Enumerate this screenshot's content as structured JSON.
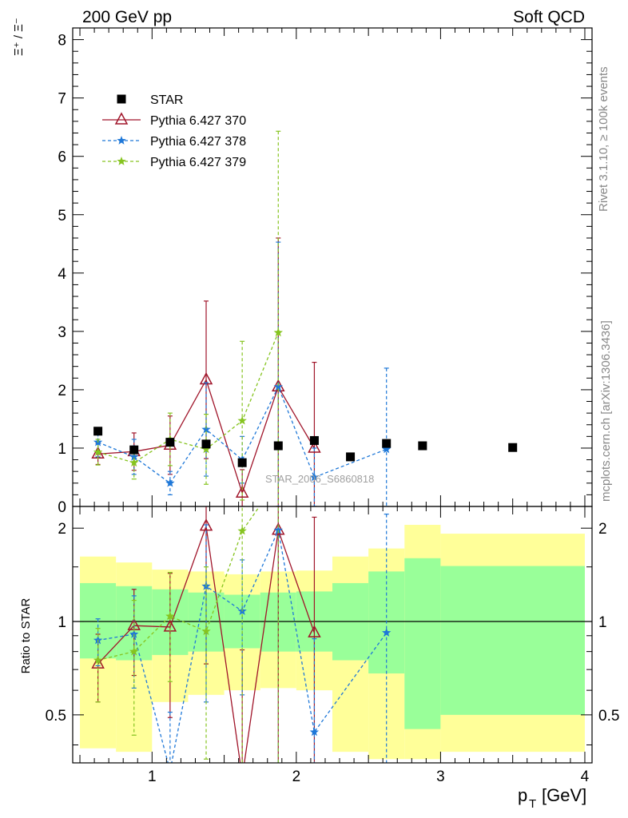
{
  "header": {
    "left": "200 GeV pp",
    "right": "Soft QCD"
  },
  "side": {
    "rivet": "Rivet 3.1.10, ≥ 100k events",
    "mcplots": "mcplots.cern.ch [arXiv:1306.3436]"
  },
  "watermark": "STAR_2006_S6860818",
  "colors": {
    "star": "#000000",
    "p370": "#a0152a",
    "p378": "#1f78d8",
    "p379": "#86c420",
    "band_inner": "#99ff99",
    "band_outer": "#ffff99"
  },
  "chart_data": [
    {
      "type": "scatter",
      "ylabel": "Ξ⁺ / Ξ⁻",
      "xlim": [
        0.45,
        4.05
      ],
      "ylim": [
        0,
        8.2
      ],
      "yticks": [
        "0",
        "1",
        "2",
        "3",
        "4",
        "5",
        "6",
        "7",
        "8"
      ],
      "legend": {
        "placement": "top-left",
        "entries": [
          "STAR",
          "Pythia 6.427 370",
          "Pythia 6.427 378",
          "Pythia 6.427 379"
        ]
      },
      "series": [
        {
          "name": "STAR",
          "marker": "square",
          "x": [
            0.625,
            0.875,
            1.125,
            1.375,
            1.625,
            1.875,
            2.125,
            2.375,
            2.625,
            2.875,
            3.5
          ],
          "y": [
            1.29,
            0.97,
            1.1,
            1.07,
            0.75,
            1.04,
            1.13,
            0.85,
            1.08,
            1.04,
            1.01
          ]
        },
        {
          "name": "Pythia 6.427 370",
          "marker": "triangle-open",
          "line": "solid",
          "x": [
            0.625,
            0.875,
            1.125,
            1.375,
            1.625,
            1.875,
            2.125
          ],
          "y": [
            0.9,
            0.94,
            1.05,
            2.17,
            0.23,
            2.05,
            1.0
          ],
          "yerr": [
            0.18,
            0.32,
            0.5,
            1.35,
            0.4,
            2.55,
            1.47
          ]
        },
        {
          "name": "Pythia 6.427 378",
          "marker": "star",
          "line": "dashed",
          "x": [
            0.625,
            0.875,
            1.125,
            1.375,
            1.625,
            1.875,
            2.125,
            2.625
          ],
          "y": [
            1.1,
            0.85,
            0.4,
            1.32,
            0.8,
            2.05,
            0.5,
            0.98
          ],
          "yerr": [
            0.25,
            0.3,
            0.2,
            0.8,
            0.4,
            2.48,
            0.5,
            1.39
          ]
        },
        {
          "name": "Pythia 6.427 379",
          "marker": "star",
          "line": "dashed",
          "x": [
            0.625,
            0.875,
            1.125,
            1.375,
            1.625,
            1.875
          ],
          "y": [
            0.93,
            0.75,
            1.15,
            0.98,
            1.47,
            2.98
          ],
          "yerr": [
            0.22,
            0.28,
            0.45,
            0.6,
            1.36,
            3.45
          ]
        }
      ]
    },
    {
      "type": "line",
      "ylabel": "Ratio to STAR",
      "xlabel": "p_T [GeV]",
      "xlim": [
        0.45,
        4.05
      ],
      "ylim": [
        0.35,
        2.35
      ],
      "yscale": "log",
      "xticks": [
        "1",
        "2",
        "3",
        "4"
      ],
      "yticks": [
        "0.5",
        "1",
        "2"
      ],
      "bands": {
        "edges": [
          0.5,
          0.75,
          1.0,
          1.25,
          1.5,
          1.75,
          2.0,
          2.25,
          2.5,
          2.75,
          3.0,
          4.0
        ],
        "inner_lo": [
          0.76,
          0.75,
          0.78,
          0.8,
          0.82,
          0.8,
          0.8,
          0.75,
          0.68,
          0.45,
          0.5
        ],
        "inner_hi": [
          1.33,
          1.3,
          1.27,
          1.24,
          1.22,
          1.24,
          1.25,
          1.33,
          1.45,
          1.6,
          1.51
        ],
        "outer_lo": [
          0.39,
          0.38,
          0.55,
          0.58,
          0.6,
          0.61,
          0.6,
          0.38,
          0.36,
          0.36,
          0.38
        ],
        "outer_hi": [
          1.62,
          1.55,
          1.47,
          1.45,
          1.42,
          1.45,
          1.46,
          1.62,
          1.72,
          2.05,
          1.92
        ]
      },
      "series": [
        {
          "name": "Pythia 6.427 370",
          "marker": "triangle-open",
          "line": "solid",
          "x": [
            0.625,
            0.875,
            1.125,
            1.375,
            1.625,
            1.875,
            2.125
          ],
          "y": [
            0.73,
            0.97,
            0.96,
            2.03,
            0.31,
            1.97,
            0.92
          ],
          "yerr": [
            0.18,
            0.3,
            0.47,
            1.3,
            0.5,
            2.4,
            1.25
          ]
        },
        {
          "name": "Pythia 6.427 378",
          "marker": "star",
          "line": "dashed",
          "x": [
            0.625,
            0.875,
            1.125,
            1.375,
            1.625,
            1.875,
            2.125,
            2.625
          ],
          "y": [
            0.87,
            0.91,
            0.33,
            1.3,
            1.08,
            1.97,
            0.44,
            0.92
          ],
          "yerr": [
            0.15,
            0.3,
            0.18,
            0.75,
            0.5,
            2.4,
            0.44,
            1.3
          ]
        },
        {
          "name": "Pythia 6.427 379",
          "marker": "star",
          "line": "dashed",
          "x": [
            0.625,
            0.875,
            1.125,
            1.375,
            1.625,
            1.875
          ],
          "y": [
            0.75,
            0.8,
            1.04,
            0.93,
            1.96,
            2.87
          ],
          "yerr": [
            0.2,
            0.37,
            0.4,
            0.57,
            1.62,
            3.3
          ]
        }
      ]
    }
  ]
}
